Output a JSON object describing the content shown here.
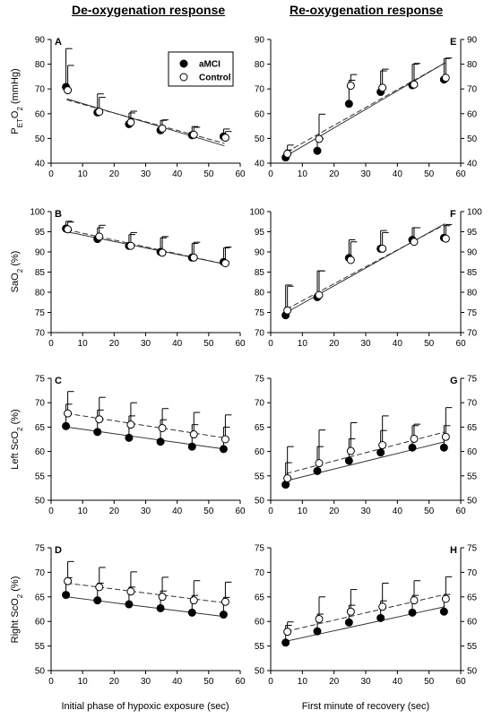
{
  "column_titles": {
    "left": "De-oxygenation response",
    "right": "Re-oxygenation response"
  },
  "x_axis_labels": {
    "left": "Initial phase of hypoxic exposure (sec)",
    "right": "First minute of recovery (sec)"
  },
  "legend": {
    "amci": "aMCI",
    "control": "Control"
  },
  "row_ylabels": [
    {
      "pre": "P",
      "sub1": "ET",
      "mid": "O",
      "sub2": "2",
      "post": " (mmHg)"
    },
    {
      "pre": "SaO",
      "sub1": "",
      "mid": "",
      "sub2": "2",
      "post": " (%)"
    },
    {
      "pre": "Left ScO",
      "sub1": "",
      "mid": "",
      "sub2": "2",
      "post": " (%)"
    },
    {
      "pre": "Right ScO",
      "sub1": "",
      "mid": "",
      "sub2": "2",
      "post": " (%)"
    }
  ],
  "chart_data": [
    {
      "panel": "A",
      "type": "scatter",
      "side": "left",
      "xlim": [
        0,
        60
      ],
      "xticks": [
        0,
        10,
        20,
        30,
        40,
        50,
        60
      ],
      "ylim": [
        40,
        90
      ],
      "yticks": [
        40,
        50,
        60,
        70,
        80,
        90
      ],
      "x": [
        5,
        15,
        25,
        35,
        45,
        55
      ],
      "series": [
        {
          "name": "aMCI",
          "marker": "filled",
          "values": [
            70.8,
            60.5,
            55.8,
            53.3,
            51.3,
            50.8
          ],
          "error_up": [
            15.5,
            7.5,
            4.5,
            4.0,
            3.5,
            3.0
          ],
          "trend": [
            66.0,
            62.2,
            58.4,
            54.6,
            50.8,
            47.0
          ]
        },
        {
          "name": "Control",
          "marker": "open",
          "values": [
            69.5,
            60.8,
            56.5,
            54.0,
            51.5,
            50.3
          ],
          "error_up": [
            10.0,
            5.8,
            4.5,
            3.5,
            3.0,
            2.5
          ],
          "trend": [
            65.6,
            62.0,
            58.5,
            55.0,
            51.5,
            48.0
          ]
        }
      ]
    },
    {
      "panel": "E",
      "type": "scatter",
      "side": "right",
      "xlim": [
        0,
        60
      ],
      "xticks": [
        0,
        10,
        20,
        30,
        40,
        50,
        60
      ],
      "ylim": [
        40,
        90
      ],
      "yticks": [
        40,
        50,
        60,
        70,
        80,
        90
      ],
      "x": [
        5,
        15,
        25,
        35,
        45,
        55
      ],
      "series": [
        {
          "name": "aMCI",
          "marker": "filled",
          "values": [
            42.3,
            45.0,
            64.0,
            68.8,
            71.5,
            73.8
          ],
          "error_up": [
            3.0,
            5.0,
            9.5,
            8.5,
            8.5,
            8.5
          ],
          "trend": [
            43.0,
            50.5,
            58.0,
            65.5,
            73.0,
            80.5
          ]
        },
        {
          "name": "Control",
          "marker": "open",
          "values": [
            43.8,
            49.8,
            71.3,
            70.5,
            71.8,
            74.5
          ],
          "error_up": [
            3.5,
            10.0,
            4.5,
            7.5,
            8.5,
            8.0
          ],
          "trend": [
            44.5,
            51.7,
            58.9,
            66.1,
            73.3,
            80.5
          ]
        }
      ]
    },
    {
      "panel": "B",
      "type": "scatter",
      "side": "left",
      "xlim": [
        0,
        60
      ],
      "xticks": [
        0,
        10,
        20,
        30,
        40,
        50,
        60
      ],
      "ylim": [
        70,
        100
      ],
      "yticks": [
        70,
        75,
        80,
        85,
        90,
        95,
        100
      ],
      "x": [
        5,
        15,
        25,
        35,
        45,
        55
      ],
      "series": [
        {
          "name": "aMCI",
          "marker": "filled",
          "values": [
            95.8,
            93.2,
            91.5,
            90.0,
            88.6,
            87.5
          ],
          "error_up": [
            1.8,
            2.8,
            2.8,
            3.5,
            3.5,
            3.5
          ],
          "trend": [
            95.0,
            93.4,
            91.8,
            90.2,
            88.6,
            87.0
          ]
        },
        {
          "name": "Control",
          "marker": "open",
          "values": [
            95.6,
            93.8,
            91.5,
            89.8,
            88.6,
            87.2
          ],
          "error_up": [
            1.8,
            2.8,
            3.3,
            4.0,
            3.8,
            4.0
          ],
          "trend": [
            95.5,
            93.8,
            92.1,
            90.4,
            88.7,
            87.0
          ]
        }
      ]
    },
    {
      "panel": "F",
      "type": "scatter",
      "side": "right",
      "xlim": [
        0,
        60
      ],
      "xticks": [
        0,
        10,
        20,
        30,
        40,
        50,
        60
      ],
      "ylim": [
        70,
        100
      ],
      "yticks": [
        70,
        75,
        80,
        85,
        90,
        95,
        100
      ],
      "x": [
        5,
        15,
        25,
        35,
        45,
        55
      ],
      "series": [
        {
          "name": "aMCI",
          "marker": "filled",
          "values": [
            74.3,
            78.8,
            88.5,
            90.8,
            93.0,
            93.5
          ],
          "error_up": [
            7.5,
            6.5,
            4.5,
            4.5,
            3.0,
            3.0
          ],
          "trend": [
            75.0,
            79.4,
            83.8,
            88.2,
            92.6,
            97.0
          ]
        },
        {
          "name": "Control",
          "marker": "open",
          "values": [
            75.5,
            79.3,
            88.0,
            90.8,
            92.5,
            93.3
          ],
          "error_up": [
            6.0,
            6.0,
            4.5,
            4.0,
            3.5,
            3.5
          ],
          "trend": [
            75.8,
            80.0,
            84.2,
            88.4,
            92.6,
            96.8
          ]
        }
      ]
    },
    {
      "panel": "C",
      "type": "scatter",
      "side": "left",
      "xlim": [
        0,
        60
      ],
      "xticks": [
        0,
        10,
        20,
        30,
        40,
        50,
        60
      ],
      "ylim": [
        50,
        75
      ],
      "yticks": [
        50,
        55,
        60,
        65,
        70,
        75
      ],
      "x": [
        5,
        15,
        25,
        35,
        45,
        55
      ],
      "series": [
        {
          "name": "aMCI",
          "marker": "filled",
          "values": [
            65.2,
            64.0,
            62.8,
            62.0,
            61.0,
            60.5
          ],
          "error_up": [
            4.5,
            4.5,
            4.5,
            4.5,
            4.5,
            4.5
          ],
          "trend": [
            65.0,
            64.1,
            63.2,
            62.3,
            61.4,
            60.5
          ]
        },
        {
          "name": "Control",
          "marker": "open",
          "values": [
            67.8,
            66.6,
            65.5,
            64.8,
            63.5,
            62.5
          ],
          "error_up": [
            4.5,
            4.5,
            4.5,
            4.0,
            4.5,
            5.0
          ],
          "trend": [
            67.8,
            66.8,
            65.8,
            64.8,
            63.8,
            62.8
          ]
        }
      ]
    },
    {
      "panel": "G",
      "type": "scatter",
      "side": "right",
      "xlim": [
        0,
        60
      ],
      "xticks": [
        0,
        10,
        20,
        30,
        40,
        50,
        60
      ],
      "ylim": [
        50,
        75
      ],
      "yticks": [
        50,
        55,
        60,
        65,
        70,
        75
      ],
      "x": [
        5,
        15,
        25,
        35,
        45,
        55
      ],
      "series": [
        {
          "name": "aMCI",
          "marker": "filled",
          "values": [
            53.2,
            56.0,
            58.1,
            59.8,
            60.8,
            60.8
          ],
          "error_up": [
            4.5,
            5.0,
            4.5,
            4.5,
            4.5,
            4.5
          ],
          "trend": [
            54.0,
            55.6,
            57.2,
            58.8,
            60.4,
            62.0
          ]
        },
        {
          "name": "Control",
          "marker": "open",
          "values": [
            54.5,
            57.6,
            60.1,
            61.3,
            62.6,
            63.0
          ],
          "error_up": [
            6.5,
            6.8,
            5.8,
            6.0,
            3.0,
            6.0
          ],
          "trend": [
            55.5,
            57.2,
            58.9,
            60.6,
            62.3,
            64.0
          ]
        }
      ]
    },
    {
      "panel": "D",
      "type": "scatter",
      "side": "left",
      "xlim": [
        0,
        60
      ],
      "xticks": [
        0,
        10,
        20,
        30,
        40,
        50,
        60
      ],
      "ylim": [
        50,
        75
      ],
      "yticks": [
        50,
        55,
        60,
        65,
        70,
        75
      ],
      "x": [
        5,
        15,
        25,
        35,
        45,
        55
      ],
      "series": [
        {
          "name": "aMCI",
          "marker": "filled",
          "values": [
            65.4,
            64.3,
            63.5,
            62.7,
            61.8,
            61.4
          ],
          "error_up": [
            3.5,
            3.5,
            3.5,
            3.5,
            3.5,
            3.5
          ],
          "trend": [
            65.0,
            64.2,
            63.4,
            62.6,
            61.8,
            61.0
          ]
        },
        {
          "name": "Control",
          "marker": "open",
          "values": [
            68.2,
            67.0,
            66.1,
            65.0,
            64.3,
            64.0
          ],
          "error_up": [
            4.0,
            4.0,
            4.0,
            4.0,
            4.0,
            4.0
          ],
          "trend": [
            67.8,
            67.0,
            66.2,
            65.4,
            64.6,
            63.8
          ]
        }
      ]
    },
    {
      "panel": "H",
      "type": "scatter",
      "side": "right",
      "xlim": [
        0,
        60
      ],
      "xticks": [
        0,
        10,
        20,
        30,
        40,
        50,
        60
      ],
      "ylim": [
        50,
        75
      ],
      "yticks": [
        50,
        55,
        60,
        65,
        70,
        75
      ],
      "x": [
        5,
        15,
        25,
        35,
        45,
        55
      ],
      "series": [
        {
          "name": "aMCI",
          "marker": "filled",
          "values": [
            55.7,
            58.0,
            59.8,
            60.7,
            61.8,
            62.0
          ],
          "error_up": [
            3.5,
            3.5,
            3.5,
            3.5,
            3.5,
            3.5
          ],
          "trend": [
            56.0,
            57.4,
            58.8,
            60.2,
            61.6,
            63.0
          ]
        },
        {
          "name": "Control",
          "marker": "open",
          "values": [
            57.9,
            60.5,
            62.0,
            63.0,
            64.3,
            64.6
          ],
          "error_up": [
            2.0,
            4.5,
            4.5,
            4.8,
            4.0,
            4.5
          ],
          "trend": [
            58.0,
            59.5,
            61.0,
            62.5,
            64.0,
            65.5
          ]
        }
      ]
    }
  ]
}
